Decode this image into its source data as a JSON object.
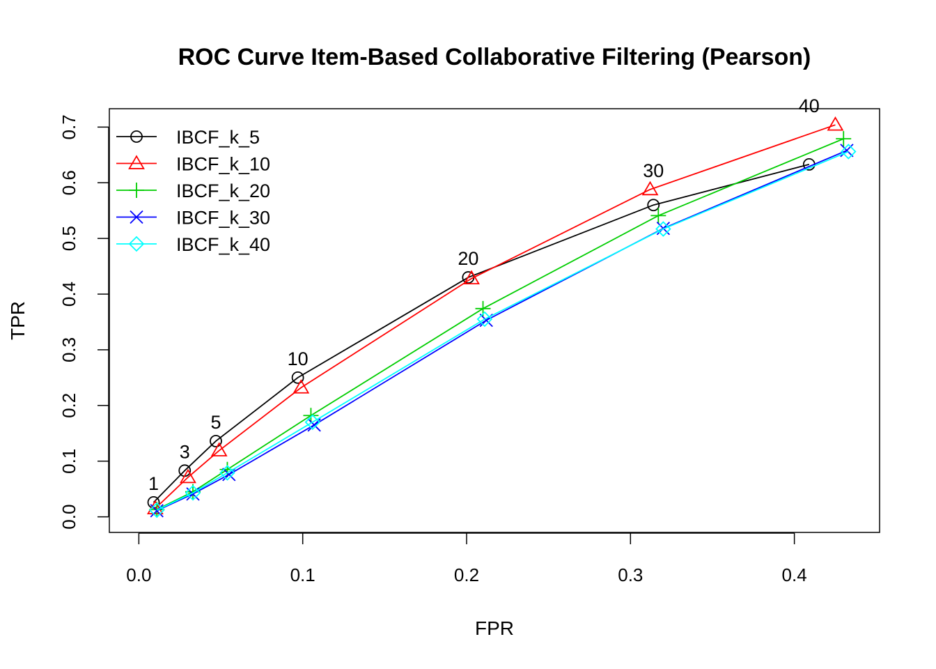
{
  "chart_data": {
    "type": "line",
    "title": "ROC Curve Item-Based Collaborative Filtering (Pearson)",
    "xlabel": "FPR",
    "ylabel": "TPR",
    "xlim": [
      -0.018,
      0.452
    ],
    "ylim": [
      -0.028,
      0.733
    ],
    "xticks": [
      "0.0",
      "0.1",
      "0.2",
      "0.3",
      "0.4"
    ],
    "yticks": [
      "0.0",
      "0.1",
      "0.2",
      "0.3",
      "0.4",
      "0.5",
      "0.6",
      "0.7"
    ],
    "grid": false,
    "legend_position": "top-left",
    "series": [
      {
        "name": "IBCF_k_5",
        "color": "#000000",
        "marker": "circle",
        "x": [
          0.009,
          0.028,
          0.047,
          0.097,
          0.201,
          0.314,
          0.409
        ],
        "y": [
          0.026,
          0.083,
          0.136,
          0.25,
          0.43,
          0.56,
          0.633
        ]
      },
      {
        "name": "IBCF_k_10",
        "color": "#ff0000",
        "marker": "triangle",
        "x": [
          0.01,
          0.03,
          0.049,
          0.099,
          0.203,
          0.312,
          0.425
        ],
        "y": [
          0.015,
          0.071,
          0.119,
          0.232,
          0.428,
          0.588,
          0.704
        ]
      },
      {
        "name": "IBCF_k_20",
        "color": "#00cd00",
        "marker": "plus",
        "x": [
          0.011,
          0.033,
          0.054,
          0.105,
          0.21,
          0.317,
          0.43
        ],
        "y": [
          0.013,
          0.045,
          0.085,
          0.182,
          0.374,
          0.541,
          0.679
        ]
      },
      {
        "name": "IBCF_k_30",
        "color": "#0000ff",
        "marker": "cross",
        "x": [
          0.011,
          0.033,
          0.055,
          0.107,
          0.212,
          0.32,
          0.432
        ],
        "y": [
          0.011,
          0.041,
          0.076,
          0.165,
          0.353,
          0.518,
          0.658
        ]
      },
      {
        "name": "IBCF_k_40",
        "color": "#00ffff",
        "marker": "diamond",
        "x": [
          0.011,
          0.033,
          0.054,
          0.106,
          0.211,
          0.32,
          0.433
        ],
        "y": [
          0.012,
          0.043,
          0.079,
          0.17,
          0.355,
          0.517,
          0.656
        ]
      }
    ],
    "point_labels": {
      "labels": [
        "1",
        "3",
        "5",
        "10",
        "20",
        "30",
        "40"
      ],
      "x": [
        0.009,
        0.028,
        0.047,
        0.097,
        0.201,
        0.314,
        0.409
      ],
      "y": [
        0.026,
        0.083,
        0.136,
        0.25,
        0.43,
        0.588,
        0.704
      ]
    }
  }
}
